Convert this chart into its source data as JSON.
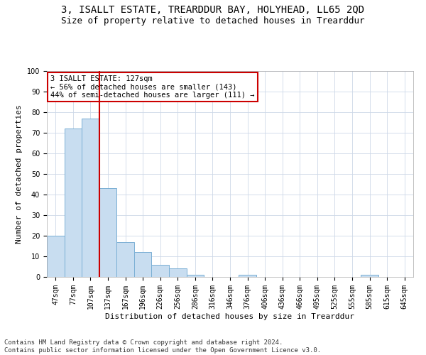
{
  "title": "3, ISALLT ESTATE, TREARDDUR BAY, HOLYHEAD, LL65 2QD",
  "subtitle": "Size of property relative to detached houses in Trearddur",
  "xlabel": "Distribution of detached houses by size in Trearddur",
  "ylabel": "Number of detached properties",
  "bar_color": "#c8ddf0",
  "bar_edge_color": "#7aafd4",
  "categories": [
    "47sqm",
    "77sqm",
    "107sqm",
    "137sqm",
    "167sqm",
    "196sqm",
    "226sqm",
    "256sqm",
    "286sqm",
    "316sqm",
    "346sqm",
    "376sqm",
    "406sqm",
    "436sqm",
    "466sqm",
    "495sqm",
    "525sqm",
    "555sqm",
    "585sqm",
    "615sqm",
    "645sqm"
  ],
  "values": [
    20,
    72,
    77,
    43,
    17,
    12,
    6,
    4,
    1,
    0,
    0,
    1,
    0,
    0,
    0,
    0,
    0,
    0,
    1,
    0,
    0
  ],
  "ylim": [
    0,
    100
  ],
  "yticks": [
    0,
    10,
    20,
    30,
    40,
    50,
    60,
    70,
    80,
    90,
    100
  ],
  "vline_index": 2.5,
  "vline_color": "#cc0000",
  "annotation_text": "3 ISALLT ESTATE: 127sqm\n← 56% of detached houses are smaller (143)\n44% of semi-detached houses are larger (111) →",
  "footer_line1": "Contains HM Land Registry data © Crown copyright and database right 2024.",
  "footer_line2": "Contains public sector information licensed under the Open Government Licence v3.0.",
  "background_color": "#ffffff",
  "grid_color": "#cdd8e8",
  "title_fontsize": 10,
  "subtitle_fontsize": 9,
  "axis_label_fontsize": 8,
  "tick_fontsize": 7,
  "annotation_fontsize": 7.5,
  "footer_fontsize": 6.5
}
